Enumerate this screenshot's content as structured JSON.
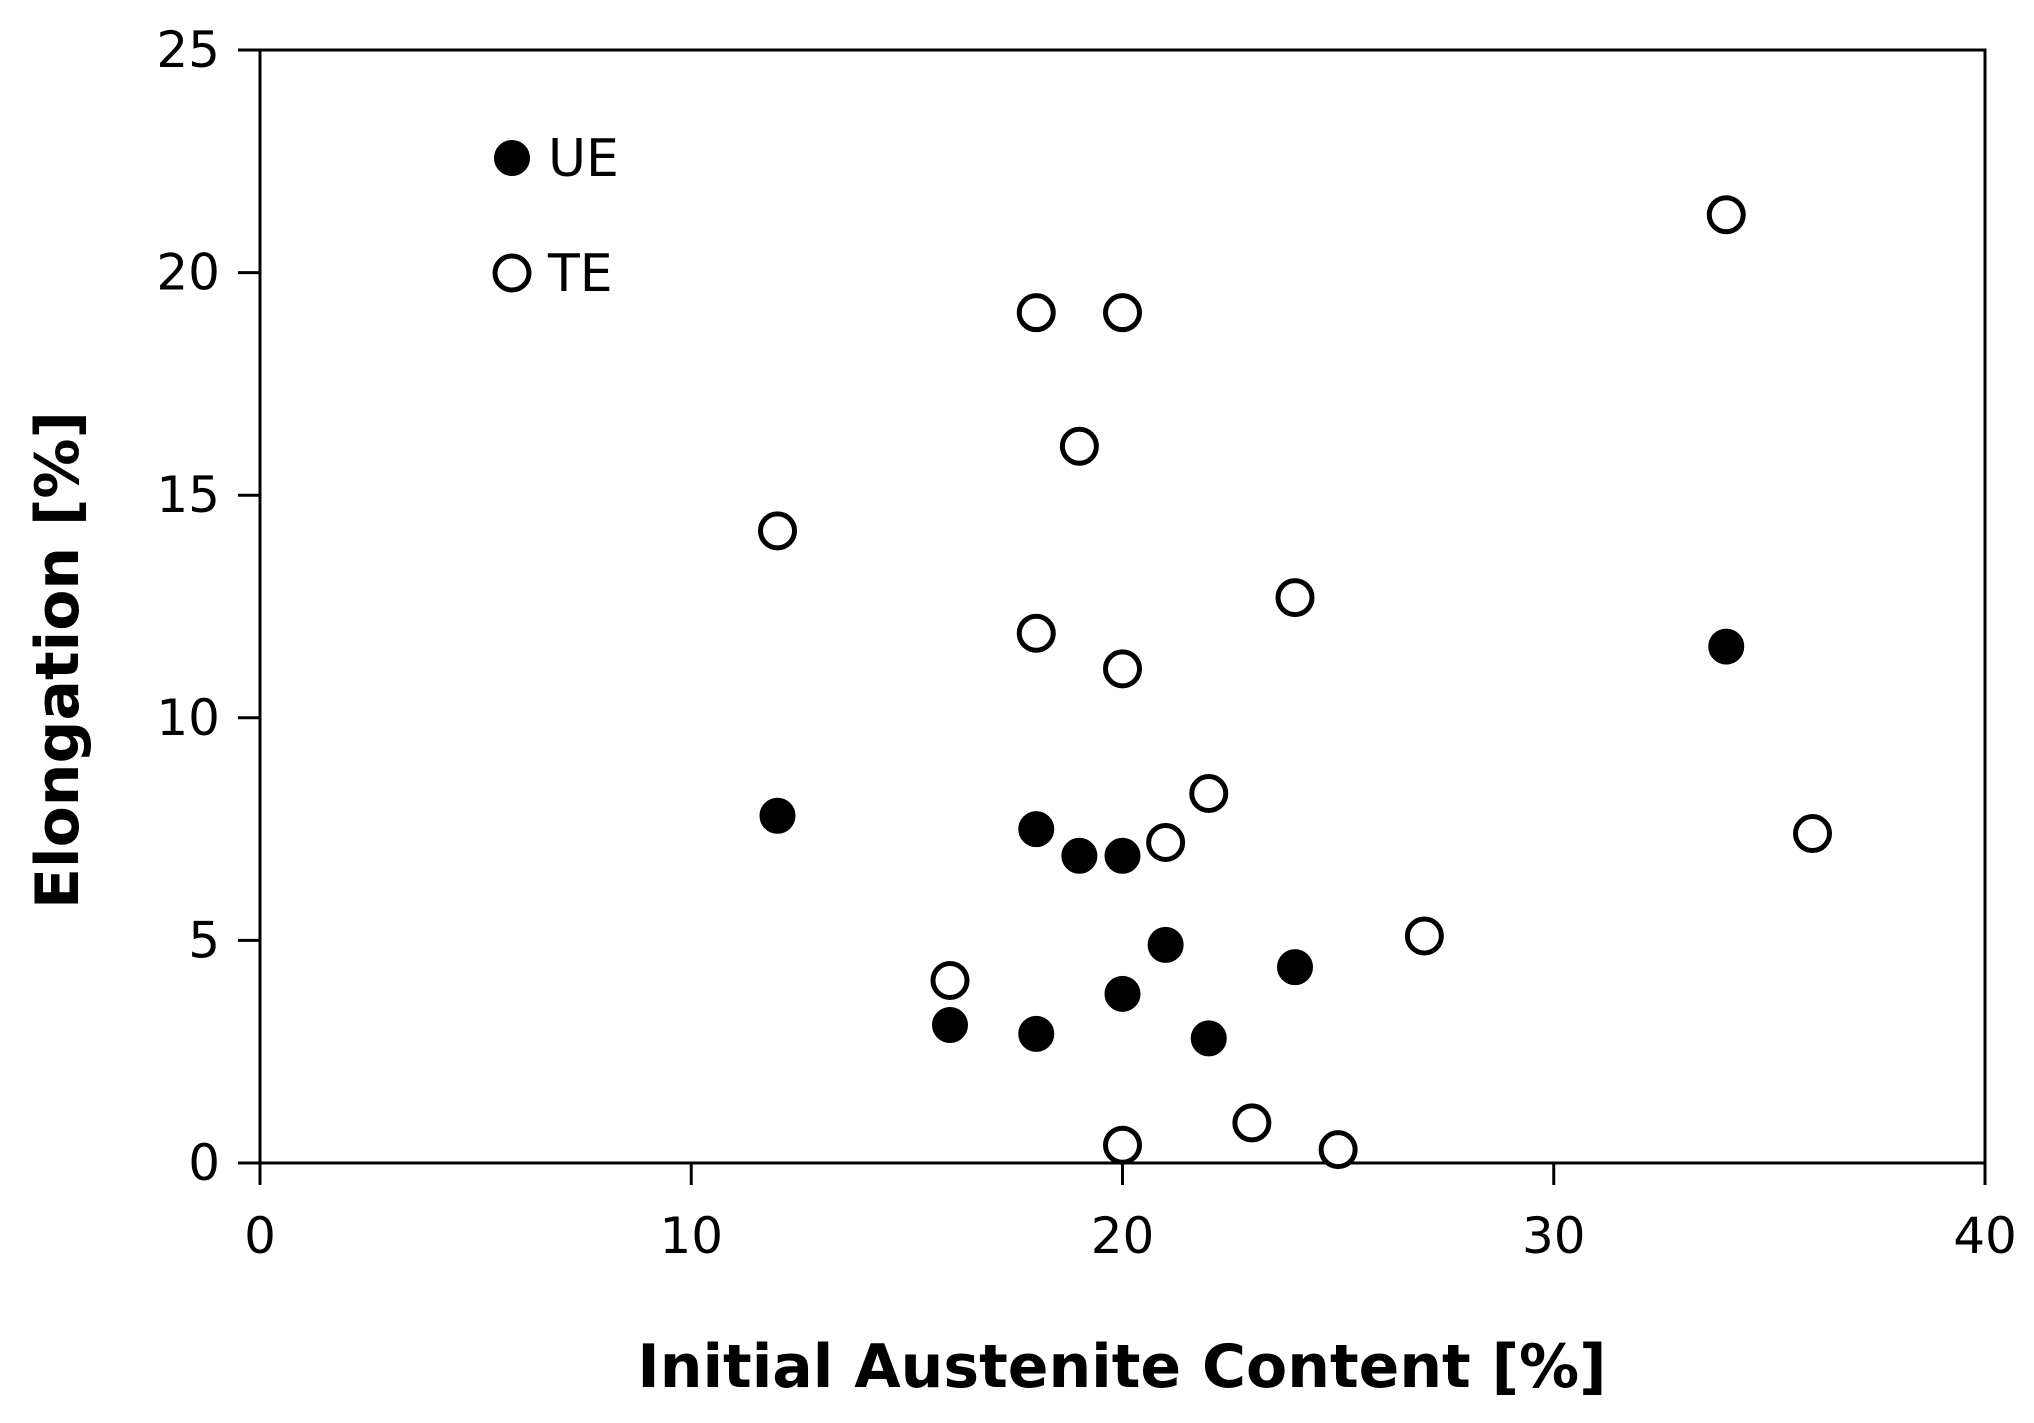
{
  "chart_data": {
    "type": "scatter",
    "xlabel": "Initial Austenite Content [%]",
    "ylabel": "Elongation [%]",
    "xlim": [
      0,
      40
    ],
    "ylim": [
      0,
      25
    ],
    "xticks": [
      "0",
      "10",
      "20",
      "30",
      "40"
    ],
    "yticks": [
      "0",
      "5",
      "10",
      "15",
      "20",
      "25"
    ],
    "grid": false,
    "legend_position": "top-left",
    "series": [
      {
        "name": "UE",
        "marker": "filled-circle",
        "color": "#000000",
        "points": [
          {
            "x": 12,
            "y": 7.8
          },
          {
            "x": 16,
            "y": 3.1
          },
          {
            "x": 18,
            "y": 7.5
          },
          {
            "x": 18,
            "y": 2.9
          },
          {
            "x": 19,
            "y": 6.9
          },
          {
            "x": 20,
            "y": 6.9
          },
          {
            "x": 20,
            "y": 3.8
          },
          {
            "x": 21,
            "y": 4.9
          },
          {
            "x": 22,
            "y": 2.8
          },
          {
            "x": 24,
            "y": 4.4
          },
          {
            "x": 34,
            "y": 11.6
          }
        ]
      },
      {
        "name": "TE",
        "marker": "open-circle",
        "color": "#000000",
        "points": [
          {
            "x": 12,
            "y": 14.2
          },
          {
            "x": 16,
            "y": 4.1
          },
          {
            "x": 18,
            "y": 19.1
          },
          {
            "x": 18,
            "y": 11.9
          },
          {
            "x": 19,
            "y": 16.1
          },
          {
            "x": 20,
            "y": 19.1
          },
          {
            "x": 20,
            "y": 11.1
          },
          {
            "x": 20,
            "y": 0.4
          },
          {
            "x": 21,
            "y": 7.2
          },
          {
            "x": 22,
            "y": 8.3
          },
          {
            "x": 23,
            "y": 0.9
          },
          {
            "x": 24,
            "y": 12.7
          },
          {
            "x": 25,
            "y": 0.3
          },
          {
            "x": 27,
            "y": 5.1
          },
          {
            "x": 34,
            "y": 21.3
          },
          {
            "x": 36,
            "y": 7.4
          }
        ]
      }
    ]
  }
}
